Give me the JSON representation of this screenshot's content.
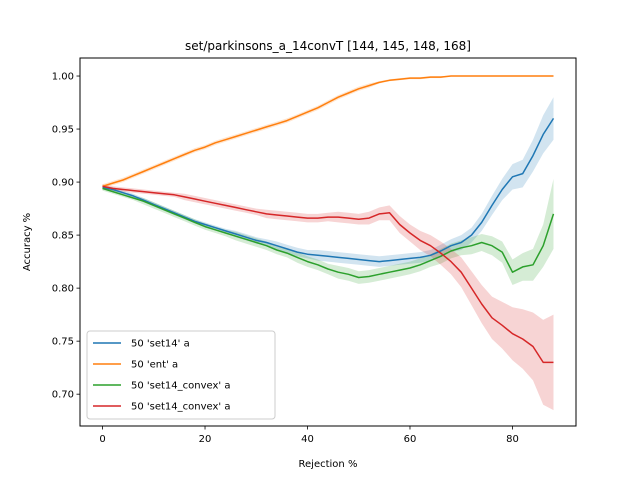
{
  "chart_data": {
    "type": "line",
    "title": "set/parkinsons_a_14convT  [144, 145, 148, 168]",
    "xlabel": "Rejection %",
    "ylabel": "Accuracy %",
    "xlim": [
      -4.4,
      92.4
    ],
    "ylim": [
      0.67,
      1.017
    ],
    "xticks": [
      0,
      20,
      40,
      60,
      80
    ],
    "xtick_labels": [
      "0",
      "20",
      "40",
      "60",
      "80"
    ],
    "yticks": [
      0.7,
      0.75,
      0.8,
      0.85,
      0.9,
      0.95,
      1.0
    ],
    "ytick_labels": [
      "0.70",
      "0.75",
      "0.80",
      "0.85",
      "0.90",
      "0.95",
      "1.00"
    ],
    "grid": false,
    "legend_position": "lower-left",
    "x": [
      0,
      2,
      4,
      6,
      8,
      10,
      12,
      14,
      16,
      18,
      20,
      22,
      24,
      26,
      28,
      30,
      32,
      34,
      36,
      38,
      40,
      42,
      44,
      46,
      48,
      50,
      52,
      54,
      56,
      58,
      60,
      62,
      64,
      66,
      68,
      70,
      72,
      74,
      76,
      78,
      80,
      82,
      84,
      86,
      88
    ],
    "series": [
      {
        "name": "50 'set14' a",
        "color": "#1f77b4",
        "values": [
          0.895,
          0.893,
          0.89,
          0.887,
          0.883,
          0.879,
          0.875,
          0.871,
          0.867,
          0.863,
          0.86,
          0.857,
          0.854,
          0.851,
          0.848,
          0.845,
          0.843,
          0.84,
          0.837,
          0.834,
          0.832,
          0.831,
          0.83,
          0.829,
          0.828,
          0.827,
          0.826,
          0.825,
          0.826,
          0.827,
          0.828,
          0.829,
          0.831,
          0.835,
          0.84,
          0.843,
          0.85,
          0.862,
          0.878,
          0.893,
          0.905,
          0.908,
          0.925,
          0.945,
          0.96
        ],
        "band": [
          0.002,
          0.002,
          0.002,
          0.002,
          0.002,
          0.002,
          0.002,
          0.002,
          0.002,
          0.002,
          0.002,
          0.002,
          0.002,
          0.003,
          0.003,
          0.003,
          0.003,
          0.004,
          0.004,
          0.004,
          0.004,
          0.005,
          0.005,
          0.005,
          0.005,
          0.005,
          0.005,
          0.005,
          0.005,
          0.005,
          0.005,
          0.005,
          0.005,
          0.006,
          0.006,
          0.007,
          0.007,
          0.008,
          0.009,
          0.01,
          0.012,
          0.013,
          0.015,
          0.018,
          0.02
        ]
      },
      {
        "name": "50 'ent' a",
        "color": "#ff7f0e",
        "values": [
          0.896,
          0.899,
          0.902,
          0.906,
          0.91,
          0.914,
          0.918,
          0.922,
          0.926,
          0.93,
          0.933,
          0.937,
          0.94,
          0.943,
          0.946,
          0.949,
          0.952,
          0.955,
          0.958,
          0.962,
          0.966,
          0.97,
          0.975,
          0.98,
          0.984,
          0.988,
          0.991,
          0.994,
          0.996,
          0.997,
          0.998,
          0.998,
          0.999,
          0.999,
          1.0,
          1.0,
          1.0,
          1.0,
          1.0,
          1.0,
          1.0,
          1.0,
          1.0,
          1.0,
          1.0
        ],
        "band": [
          0.002,
          0.002,
          0.002,
          0.002,
          0.002,
          0.002,
          0.002,
          0.002,
          0.002,
          0.002,
          0.002,
          0.002,
          0.002,
          0.002,
          0.002,
          0.002,
          0.002,
          0.002,
          0.002,
          0.002,
          0.002,
          0.002,
          0.002,
          0.002,
          0.002,
          0.002,
          0.002,
          0.001,
          0.001,
          0.001,
          0.001,
          0.001,
          0.001,
          0.001,
          0.0,
          0.0,
          0.0,
          0.0,
          0.0,
          0.0,
          0.0,
          0.0,
          0.0,
          0.0,
          0.0
        ]
      },
      {
        "name": "50 'set14_convex' a",
        "color": "#2ca02c",
        "values": [
          0.894,
          0.891,
          0.888,
          0.885,
          0.882,
          0.878,
          0.874,
          0.87,
          0.866,
          0.862,
          0.858,
          0.855,
          0.852,
          0.849,
          0.846,
          0.843,
          0.84,
          0.836,
          0.833,
          0.829,
          0.825,
          0.822,
          0.818,
          0.815,
          0.813,
          0.81,
          0.811,
          0.813,
          0.815,
          0.817,
          0.819,
          0.822,
          0.826,
          0.83,
          0.835,
          0.838,
          0.84,
          0.843,
          0.84,
          0.834,
          0.815,
          0.82,
          0.822,
          0.84,
          0.87
        ],
        "band": [
          0.002,
          0.002,
          0.002,
          0.002,
          0.003,
          0.003,
          0.003,
          0.003,
          0.003,
          0.003,
          0.003,
          0.003,
          0.003,
          0.004,
          0.004,
          0.004,
          0.004,
          0.004,
          0.004,
          0.005,
          0.005,
          0.005,
          0.005,
          0.006,
          0.006,
          0.006,
          0.006,
          0.006,
          0.006,
          0.006,
          0.006,
          0.006,
          0.006,
          0.007,
          0.007,
          0.007,
          0.008,
          0.008,
          0.009,
          0.01,
          0.012,
          0.013,
          0.015,
          0.02,
          0.033
        ]
      },
      {
        "name": "50 'set14_convex' a",
        "color": "#d62728",
        "values": [
          0.896,
          0.894,
          0.893,
          0.892,
          0.891,
          0.89,
          0.889,
          0.888,
          0.886,
          0.884,
          0.882,
          0.88,
          0.878,
          0.876,
          0.874,
          0.872,
          0.87,
          0.869,
          0.868,
          0.867,
          0.866,
          0.866,
          0.867,
          0.867,
          0.866,
          0.865,
          0.866,
          0.87,
          0.871,
          0.86,
          0.852,
          0.845,
          0.84,
          0.833,
          0.825,
          0.815,
          0.8,
          0.785,
          0.772,
          0.765,
          0.757,
          0.752,
          0.745,
          0.73,
          0.73
        ],
        "band": [
          0.002,
          0.002,
          0.002,
          0.002,
          0.002,
          0.002,
          0.002,
          0.002,
          0.003,
          0.003,
          0.003,
          0.003,
          0.003,
          0.003,
          0.003,
          0.003,
          0.004,
          0.004,
          0.004,
          0.004,
          0.004,
          0.004,
          0.004,
          0.005,
          0.005,
          0.005,
          0.006,
          0.006,
          0.007,
          0.008,
          0.008,
          0.009,
          0.01,
          0.011,
          0.012,
          0.014,
          0.016,
          0.018,
          0.02,
          0.022,
          0.025,
          0.028,
          0.032,
          0.04,
          0.045
        ]
      }
    ]
  }
}
